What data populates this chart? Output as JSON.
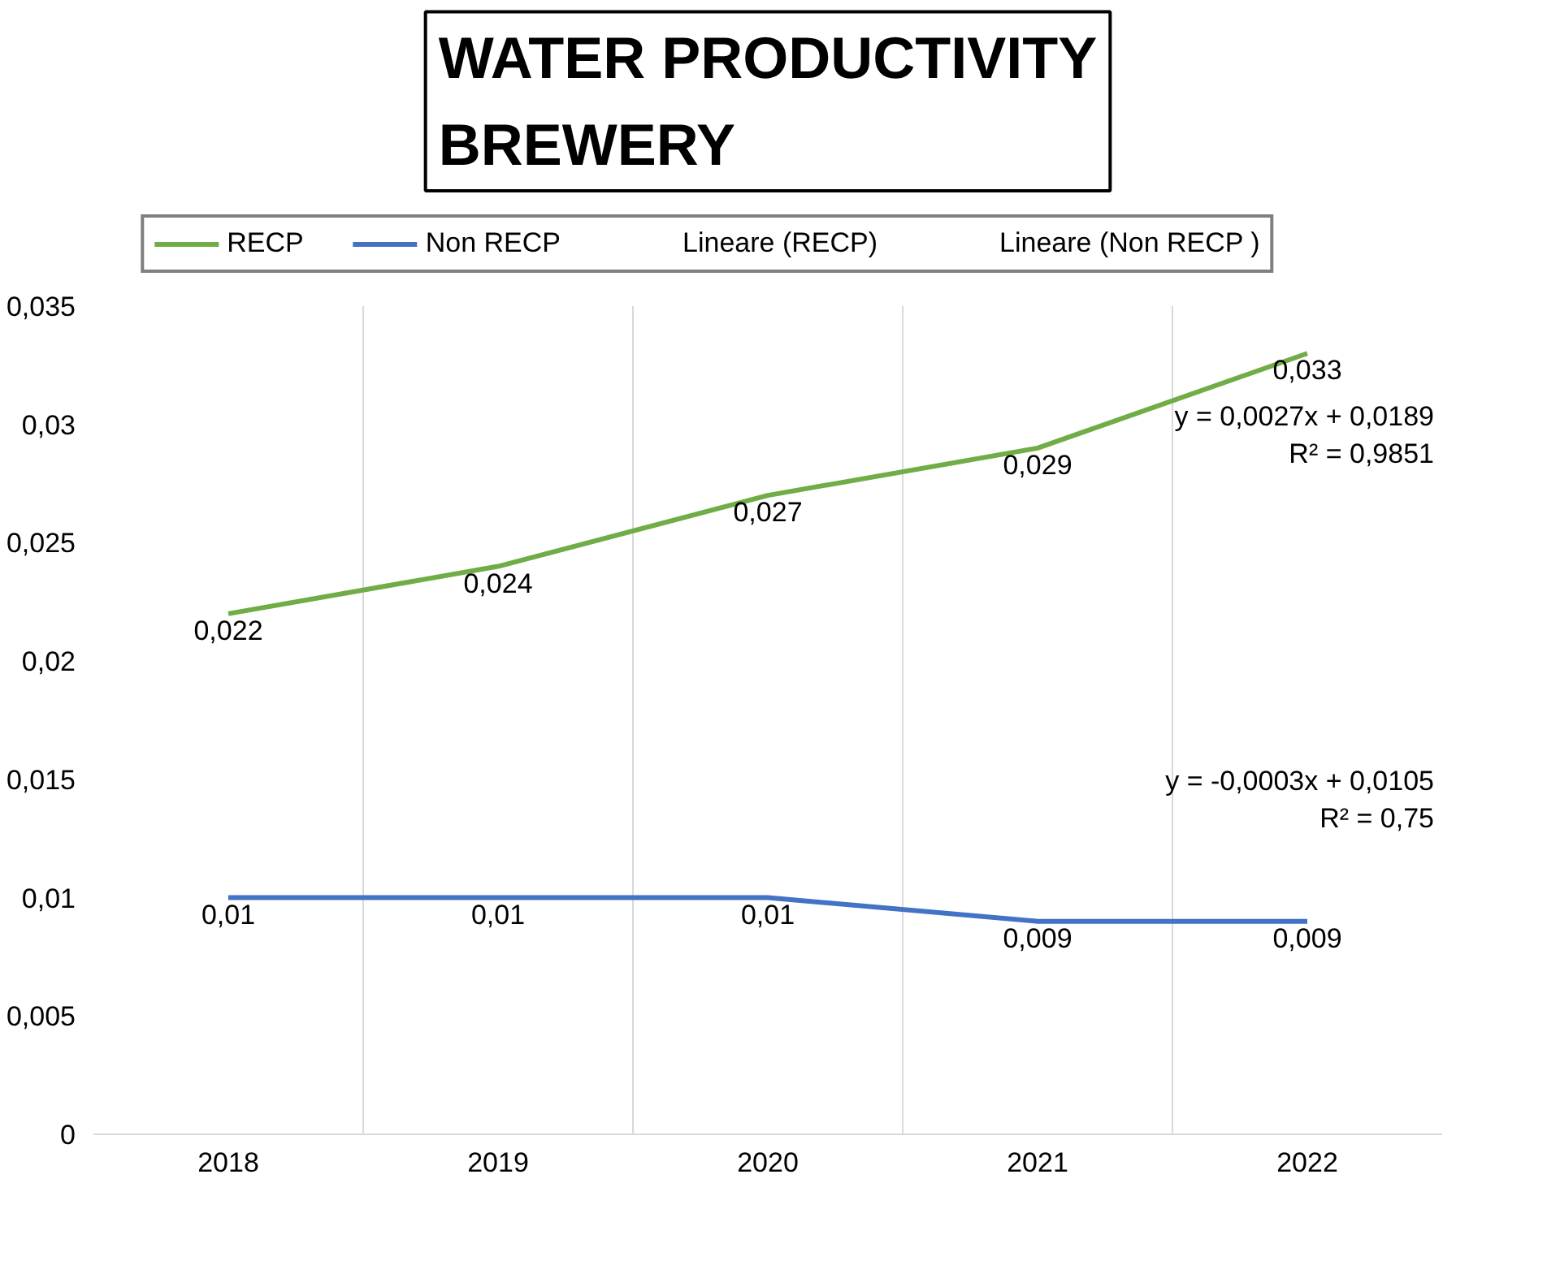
{
  "chart_data": {
    "type": "line",
    "title": "WATER PRODUCTIVITY\nBREWERY",
    "categories": [
      "2018",
      "2019",
      "2020",
      "2021",
      "2022"
    ],
    "series": [
      {
        "name": "RECP",
        "color": "#70ad47",
        "values": [
          0.022,
          0.024,
          0.027,
          0.029,
          0.033
        ],
        "value_labels": [
          "0,022",
          "0,024",
          "0,027",
          "0,029",
          "0,033"
        ]
      },
      {
        "name": "Non RECP",
        "color": "#4472c4",
        "values": [
          0.01,
          0.01,
          0.01,
          0.009,
          0.009
        ],
        "value_labels": [
          "0,01",
          "0,01",
          "0,01",
          "0,009",
          "0,009"
        ]
      },
      {
        "name": "Lineare (RECP)",
        "values": [
          null,
          null,
          null,
          null,
          null
        ]
      },
      {
        "name": "Lineare (Non RECP )",
        "values": [
          null,
          null,
          null,
          null,
          null
        ]
      }
    ],
    "ylim": [
      0,
      0.035
    ],
    "yticks": [
      {
        "value": 0,
        "label": "0"
      },
      {
        "value": 0.005,
        "label": "0,005"
      },
      {
        "value": 0.01,
        "label": "0,01"
      },
      {
        "value": 0.015,
        "label": "0,015"
      },
      {
        "value": 0.02,
        "label": "0,02"
      },
      {
        "value": 0.025,
        "label": "0,025"
      },
      {
        "value": 0.03,
        "label": "0,03"
      },
      {
        "value": 0.035,
        "label": "0,035"
      }
    ],
    "annotations": [
      "y = 0,0027x + 0,0189\nR² = 0,9851",
      "y = -0,0003x + 0,0105\nR² = 0,75"
    ],
    "grid": "x",
    "legend": "top",
    "marker": "none",
    "line_style": "solid"
  }
}
